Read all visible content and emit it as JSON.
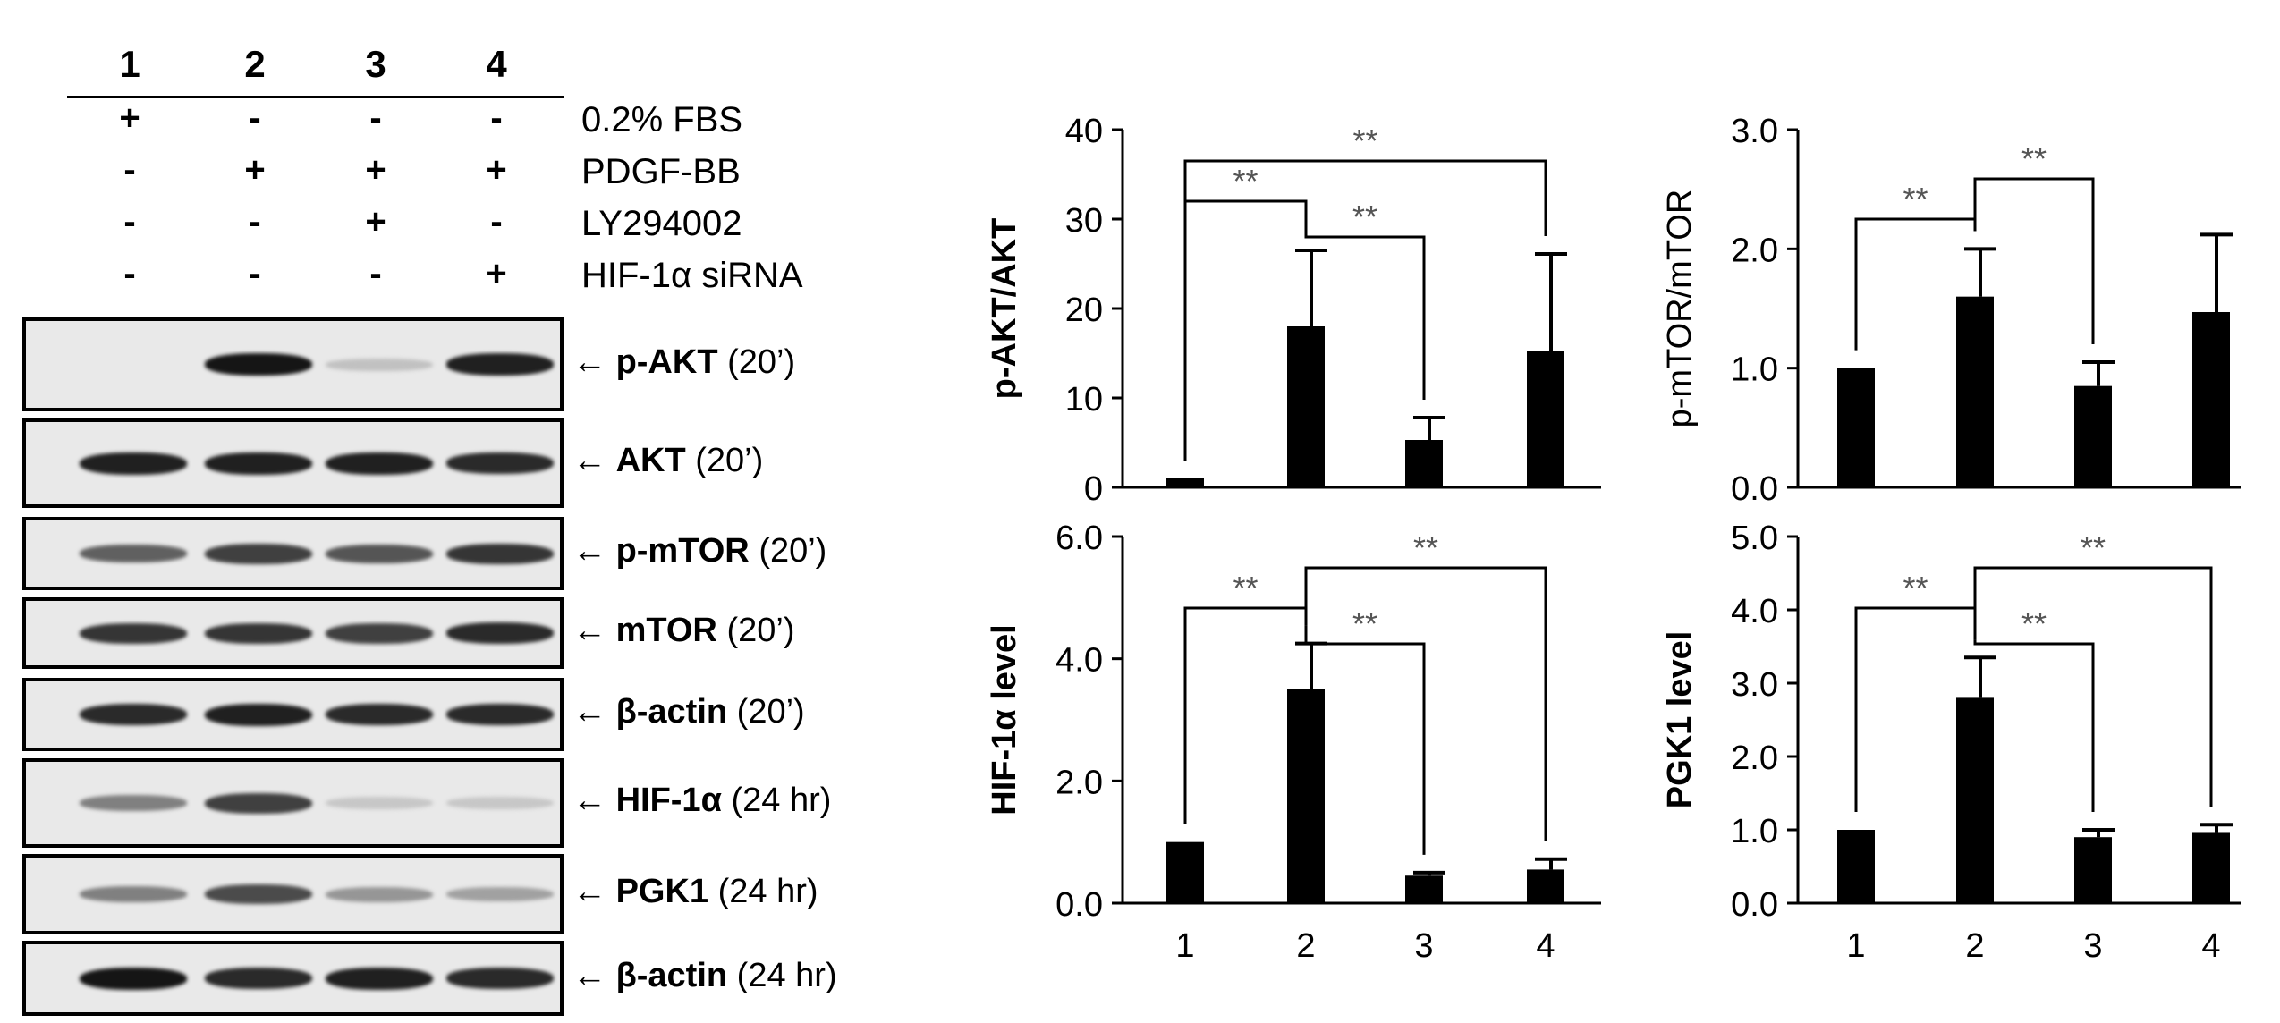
{
  "lanes": [
    "1",
    "2",
    "3",
    "4"
  ],
  "conditions": [
    {
      "label": "0.2% FBS",
      "signs": [
        "+",
        "-",
        "-",
        "-"
      ]
    },
    {
      "label": "PDGF-BB",
      "signs": [
        "-",
        "+",
        "+",
        "+"
      ]
    },
    {
      "label": "LY294002",
      "signs": [
        "-",
        "-",
        "+",
        "-"
      ]
    },
    {
      "label": "HIF-1α siRNA",
      "signs": [
        "-",
        "-",
        "-",
        "+"
      ]
    }
  ],
  "blots": [
    {
      "arrow": "←",
      "name": "p-AKT",
      "time": "(20’)",
      "intensity": [
        0.0,
        0.95,
        0.15,
        0.9
      ]
    },
    {
      "arrow": "←",
      "name": "AKT",
      "time": "(20’)",
      "intensity": [
        0.9,
        0.9,
        0.9,
        0.85
      ]
    },
    {
      "arrow": "←",
      "name": "p-mTOR",
      "time": "(20’)",
      "intensity": [
        0.6,
        0.75,
        0.65,
        0.8
      ]
    },
    {
      "arrow": "←",
      "name": "mTOR",
      "time": "(20’)",
      "intensity": [
        0.8,
        0.8,
        0.75,
        0.85
      ]
    },
    {
      "arrow": "←",
      "name": "β-actin",
      "time": "(20’)",
      "intensity": [
        0.85,
        0.9,
        0.85,
        0.85
      ]
    },
    {
      "arrow": "←",
      "name": "HIF-1α",
      "time": " (24 hr)",
      "intensity": [
        0.45,
        0.75,
        0.12,
        0.12
      ]
    },
    {
      "arrow": "←",
      "name": "PGK1",
      "time": "(24 hr)",
      "intensity": [
        0.45,
        0.7,
        0.35,
        0.3
      ]
    },
    {
      "arrow": "←",
      "name": "β-actin",
      "time": "(24 hr)",
      "intensity": [
        0.95,
        0.85,
        0.9,
        0.85
      ]
    }
  ],
  "chart_data": [
    {
      "type": "bar",
      "categories": [
        "1",
        "2",
        "3",
        "4"
      ],
      "values": [
        1.0,
        18.0,
        5.3,
        15.3
      ],
      "errors": [
        0,
        8.5,
        2.5,
        10.8
      ],
      "ylabel": "p-AKT/AKT",
      "ylim": [
        0,
        40
      ],
      "yticks": [
        "0",
        "10",
        "20",
        "30",
        "40"
      ],
      "show_xticks": false,
      "significance": [
        {
          "from": 1,
          "to": 4,
          "label": "**"
        },
        {
          "from": 1,
          "to": 2,
          "label": "**"
        },
        {
          "from": 2,
          "to": 3,
          "label": "**"
        }
      ]
    },
    {
      "type": "bar",
      "categories": [
        "1",
        "2",
        "3",
        "4"
      ],
      "values": [
        1.0,
        1.6,
        0.85,
        1.47
      ],
      "errors": [
        0,
        0.4,
        0.2,
        0.65
      ],
      "ylabel": "p-mTOR/mTOR",
      "ylim": [
        0,
        3.0
      ],
      "yticks": [
        "0.0",
        "1.0",
        "2.0",
        "3.0"
      ],
      "show_xticks": false,
      "significance": [
        {
          "from": 1,
          "to": 2,
          "label": "**"
        },
        {
          "from": 2,
          "to": 3,
          "label": "**"
        }
      ]
    },
    {
      "type": "bar",
      "categories": [
        "1",
        "2",
        "3",
        "4"
      ],
      "values": [
        1.0,
        3.5,
        0.45,
        0.55
      ],
      "errors": [
        0,
        0.75,
        0.05,
        0.17
      ],
      "ylabel": "HIF-1α level",
      "ylim": [
        0,
        6.0
      ],
      "yticks": [
        "0.0",
        "2.0",
        "4.0",
        "6.0"
      ],
      "show_xticks": true,
      "significance": [
        {
          "from": 2,
          "to": 4,
          "label": "**"
        },
        {
          "from": 1,
          "to": 2,
          "label": "**"
        },
        {
          "from": 2,
          "to": 3,
          "label": "**"
        }
      ]
    },
    {
      "type": "bar",
      "categories": [
        "1",
        "2",
        "3",
        "4"
      ],
      "values": [
        1.0,
        2.8,
        0.9,
        0.97
      ],
      "errors": [
        0,
        0.55,
        0.1,
        0.1
      ],
      "ylabel": "PGK1 level",
      "ylim": [
        0,
        5.0
      ],
      "yticks": [
        "0.0",
        "1.0",
        "2.0",
        "3.0",
        "4.0",
        "5.0"
      ],
      "show_xticks": true,
      "significance": [
        {
          "from": 2,
          "to": 4,
          "label": "**"
        },
        {
          "from": 1,
          "to": 2,
          "label": "**"
        },
        {
          "from": 2,
          "to": 3,
          "label": "**"
        }
      ]
    }
  ]
}
